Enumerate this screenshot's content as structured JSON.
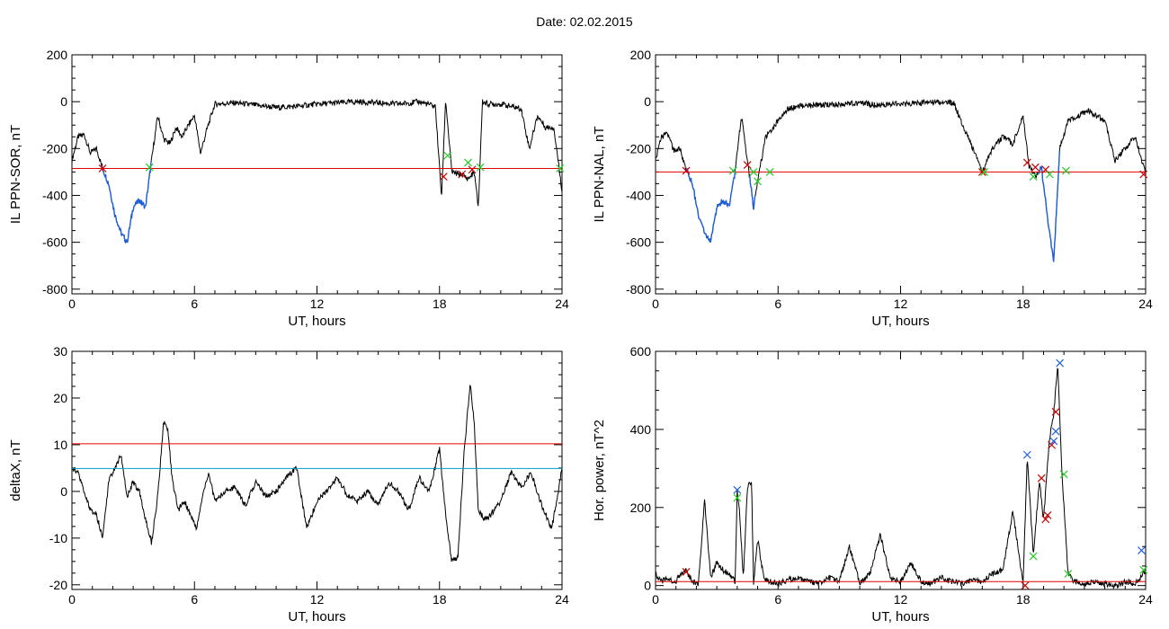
{
  "figure": {
    "title": "Date:  02.02.2015"
  },
  "colors": {
    "data": "#000000",
    "blue_segment": "#1f5fd6",
    "red_threshold": "#e00000",
    "cyan_threshold": "#00a0c8",
    "marker_red": "#cc0000",
    "marker_green": "#22cc22",
    "marker_blue": "#2060e0"
  },
  "chart_data": [
    {
      "id": "il-sor",
      "type": "line",
      "xlabel": "UT, hours",
      "ylabel": "IL PPN-SOR, nT",
      "xlim": [
        0,
        24
      ],
      "ylim": [
        -820,
        200
      ],
      "xticks": [
        "0",
        "6",
        "12",
        "18",
        "24"
      ],
      "yticks": [
        "200",
        "0",
        "-200",
        "-400",
        "-600",
        "-800"
      ],
      "ytick_values": [
        200,
        0,
        -200,
        -400,
        -600,
        -800
      ],
      "series": [
        {
          "x": [
            0,
            0.3,
            0.6,
            0.9,
            1.2,
            1.5,
            1.8,
            2.1,
            2.4,
            2.7,
            3.0,
            3.3,
            3.6,
            3.9,
            4.2,
            4.5,
            4.8,
            5.1,
            5.4,
            5.7,
            6.0,
            6.3,
            6.6,
            7.0,
            8.0,
            9.0,
            10.0,
            11.0,
            12.0,
            13.0,
            14.0,
            15.0,
            16.0,
            17.0,
            17.8,
            18.1,
            18.3,
            18.6,
            18.9,
            19.1,
            19.4,
            19.7,
            19.9,
            20.1,
            20.4,
            21.0,
            22.0,
            22.4,
            22.8,
            23.2,
            23.6,
            24.0
          ],
          "y": [
            -250,
            -150,
            -140,
            -220,
            -200,
            -285,
            -350,
            -480,
            -560,
            -600,
            -450,
            -420,
            -450,
            -250,
            -60,
            -160,
            -180,
            -110,
            -150,
            -100,
            -60,
            -220,
            -120,
            -10,
            -5,
            -15,
            -25,
            -20,
            -10,
            -5,
            0,
            -5,
            -10,
            0,
            -20,
            -410,
            10,
            -300,
            -310,
            -310,
            -330,
            -300,
            -450,
            0,
            -10,
            -10,
            -30,
            -200,
            -60,
            -110,
            -110,
            -380
          ]
        }
      ],
      "blue_segments": [
        [
          1.5,
          3.9
        ]
      ],
      "threshold_red": -285,
      "markers": [
        {
          "x": 1.5,
          "y": -285,
          "color": "red"
        },
        {
          "x": 3.8,
          "y": -280,
          "color": "green"
        },
        {
          "x": 18.2,
          "y": -320,
          "color": "red"
        },
        {
          "x": 18.4,
          "y": -230,
          "color": "green"
        },
        {
          "x": 19.1,
          "y": -310,
          "color": "red"
        },
        {
          "x": 19.4,
          "y": -260,
          "color": "green"
        },
        {
          "x": 19.6,
          "y": -290,
          "color": "red"
        },
        {
          "x": 20.0,
          "y": -280,
          "color": "green"
        },
        {
          "x": 23.9,
          "y": -285,
          "color": "green"
        }
      ]
    },
    {
      "id": "il-nal",
      "type": "line",
      "xlabel": "UT, hours",
      "ylabel": "IL PPN-NAL, nT",
      "xlim": [
        0,
        24
      ],
      "ylim": [
        -820,
        200
      ],
      "xticks": [
        "0",
        "6",
        "12",
        "18",
        "24"
      ],
      "yticks": [
        "200",
        "0",
        "-200",
        "-400",
        "-600",
        "-800"
      ],
      "ytick_values": [
        200,
        0,
        -200,
        -400,
        -600,
        -800
      ],
      "series": [
        {
          "x": [
            0,
            0.3,
            0.6,
            0.9,
            1.2,
            1.5,
            1.8,
            2.1,
            2.4,
            2.7,
            3.0,
            3.3,
            3.6,
            3.9,
            4.2,
            4.5,
            4.8,
            5.1,
            5.4,
            5.7,
            6.0,
            6.5,
            7.0,
            8.0,
            9.0,
            10.0,
            11.0,
            12.0,
            13.0,
            14.0,
            14.6,
            15.0,
            15.5,
            16.0,
            16.5,
            17.0,
            17.5,
            18.0,
            18.3,
            18.6,
            18.9,
            19.2,
            19.5,
            19.8,
            20.2,
            20.7,
            21.2,
            22.0,
            22.5,
            23.0,
            23.5,
            24.0
          ],
          "y": [
            -250,
            -150,
            -140,
            -210,
            -200,
            -290,
            -350,
            -480,
            -560,
            -600,
            -450,
            -420,
            -450,
            -300,
            -60,
            -250,
            -450,
            -290,
            -150,
            -120,
            -80,
            -30,
            -20,
            -15,
            -10,
            -5,
            -15,
            -10,
            -5,
            0,
            -5,
            -90,
            -190,
            -300,
            -200,
            -150,
            -180,
            -60,
            -280,
            -320,
            -280,
            -500,
            -680,
            -200,
            -80,
            -60,
            -40,
            -80,
            -250,
            -200,
            -150,
            -310
          ]
        }
      ],
      "blue_segments": [
        [
          1.5,
          3.9
        ],
        [
          4.6,
          4.9
        ],
        [
          18.7,
          19.8
        ]
      ],
      "threshold_red": -300,
      "markers": [
        {
          "x": 1.5,
          "y": -295,
          "color": "red"
        },
        {
          "x": 3.8,
          "y": -295,
          "color": "green"
        },
        {
          "x": 4.5,
          "y": -270,
          "color": "red"
        },
        {
          "x": 4.8,
          "y": -300,
          "color": "green"
        },
        {
          "x": 5.0,
          "y": -340,
          "color": "green"
        },
        {
          "x": 5.6,
          "y": -300,
          "color": "green"
        },
        {
          "x": 16.0,
          "y": -300,
          "color": "red"
        },
        {
          "x": 16.1,
          "y": -300,
          "color": "green"
        },
        {
          "x": 18.2,
          "y": -260,
          "color": "red"
        },
        {
          "x": 18.5,
          "y": -320,
          "color": "green"
        },
        {
          "x": 18.6,
          "y": -280,
          "color": "red"
        },
        {
          "x": 19.1,
          "y": -290,
          "color": "red"
        },
        {
          "x": 19.3,
          "y": -310,
          "color": "green"
        },
        {
          "x": 20.1,
          "y": -295,
          "color": "green"
        },
        {
          "x": 23.9,
          "y": -310,
          "color": "red"
        }
      ]
    },
    {
      "id": "deltax",
      "type": "line",
      "xlabel": "UT, hours",
      "ylabel": "deltaX, nT",
      "xlim": [
        0,
        24
      ],
      "ylim": [
        -21,
        30
      ],
      "xticks": [
        "0",
        "6",
        "12",
        "18",
        "24"
      ],
      "yticks": [
        "30",
        "20",
        "10",
        "0",
        "-10",
        "-20"
      ],
      "ytick_values": [
        30,
        20,
        10,
        0,
        -10,
        -20
      ],
      "series": [
        {
          "x": [
            0,
            0.3,
            0.6,
            0.9,
            1.2,
            1.5,
            1.8,
            2.1,
            2.4,
            2.7,
            3.0,
            3.3,
            3.6,
            3.9,
            4.2,
            4.5,
            4.7,
            4.9,
            5.2,
            5.5,
            5.8,
            6.1,
            6.4,
            6.7,
            7.0,
            7.5,
            8.0,
            8.5,
            9.0,
            9.5,
            10.0,
            10.5,
            11.0,
            11.5,
            12.0,
            12.5,
            13.0,
            13.5,
            14.0,
            14.5,
            15.0,
            15.5,
            16.0,
            16.5,
            17.0,
            17.5,
            18.0,
            18.3,
            18.6,
            18.9,
            19.2,
            19.5,
            19.7,
            19.9,
            20.2,
            20.5,
            21.0,
            21.5,
            22.0,
            22.5,
            23.0,
            23.5,
            24.0
          ],
          "y": [
            5,
            4,
            0,
            -4,
            -5,
            -10,
            2,
            5,
            8,
            -1,
            2,
            0,
            -6,
            -11,
            -1,
            15,
            13,
            3,
            -4,
            -2,
            -5,
            -8,
            -1,
            4,
            -2,
            0,
            1,
            -3,
            2,
            -1,
            0,
            3,
            5,
            -8,
            -2,
            0,
            3,
            -1,
            -2,
            0,
            -3,
            2,
            0,
            -4,
            3,
            0,
            9,
            -5,
            -15,
            -14,
            8,
            23,
            15,
            -4,
            -6,
            -5,
            -2,
            4,
            1,
            4,
            -3,
            -8,
            5
          ]
        }
      ],
      "threshold_red": 10.2,
      "threshold_cyan": 4.9
    },
    {
      "id": "hor-power",
      "type": "line",
      "xlabel": "UT, hours",
      "ylabel": "Hor. power, nT^2",
      "xlim": [
        0,
        24
      ],
      "ylim": [
        -10,
        600
      ],
      "xticks": [
        "0",
        "6",
        "12",
        "18",
        "24"
      ],
      "yticks": [
        "600",
        "400",
        "200",
        "0"
      ],
      "ytick_values": [
        600,
        400,
        200,
        0
      ],
      "series": [
        {
          "x": [
            0,
            0.3,
            0.6,
            0.9,
            1.2,
            1.5,
            1.8,
            2.1,
            2.4,
            2.7,
            3.0,
            3.3,
            3.6,
            3.9,
            4.0,
            4.1,
            4.3,
            4.5,
            4.7,
            4.8,
            5.0,
            5.3,
            5.6,
            6.0,
            6.5,
            7.0,
            7.5,
            8.0,
            8.5,
            9.0,
            9.5,
            10.0,
            10.5,
            11.0,
            11.5,
            12.0,
            12.5,
            13.0,
            13.5,
            14.0,
            14.5,
            15.0,
            15.5,
            16.0,
            16.5,
            17.0,
            17.5,
            18.0,
            18.2,
            18.5,
            18.8,
            19.0,
            19.3,
            19.5,
            19.7,
            19.9,
            20.2,
            20.5,
            21.0,
            21.5,
            22.0,
            22.5,
            23.0,
            23.5,
            24.0
          ],
          "y": [
            30,
            10,
            20,
            5,
            25,
            40,
            10,
            5,
            220,
            20,
            60,
            40,
            30,
            10,
            240,
            200,
            20,
            250,
            270,
            5,
            120,
            20,
            10,
            5,
            15,
            20,
            10,
            5,
            20,
            10,
            100,
            5,
            30,
            130,
            20,
            10,
            60,
            10,
            5,
            20,
            10,
            5,
            15,
            10,
            30,
            40,
            190,
            5,
            330,
            80,
            270,
            170,
            380,
            440,
            570,
            290,
            30,
            10,
            5,
            10,
            5,
            0,
            10,
            5,
            40
          ]
        }
      ],
      "threshold_red": 10,
      "markers": [
        {
          "x": 1.5,
          "y": 35,
          "color": "red"
        },
        {
          "x": 4.0,
          "y": 245,
          "color": "blue"
        },
        {
          "x": 4.0,
          "y": 225,
          "color": "green"
        },
        {
          "x": 18.1,
          "y": 0,
          "color": "red"
        },
        {
          "x": 18.2,
          "y": 335,
          "color": "blue"
        },
        {
          "x": 18.5,
          "y": 75,
          "color": "green"
        },
        {
          "x": 18.9,
          "y": 275,
          "color": "red"
        },
        {
          "x": 19.1,
          "y": 170,
          "color": "red"
        },
        {
          "x": 19.2,
          "y": 180,
          "color": "red"
        },
        {
          "x": 19.4,
          "y": 360,
          "color": "red"
        },
        {
          "x": 19.5,
          "y": 370,
          "color": "blue"
        },
        {
          "x": 19.6,
          "y": 395,
          "color": "blue"
        },
        {
          "x": 19.6,
          "y": 445,
          "color": "red"
        },
        {
          "x": 19.8,
          "y": 570,
          "color": "blue"
        },
        {
          "x": 20.0,
          "y": 285,
          "color": "green"
        },
        {
          "x": 20.2,
          "y": 30,
          "color": "green"
        },
        {
          "x": 23.8,
          "y": 90,
          "color": "blue"
        },
        {
          "x": 23.9,
          "y": 40,
          "color": "green"
        }
      ]
    }
  ]
}
